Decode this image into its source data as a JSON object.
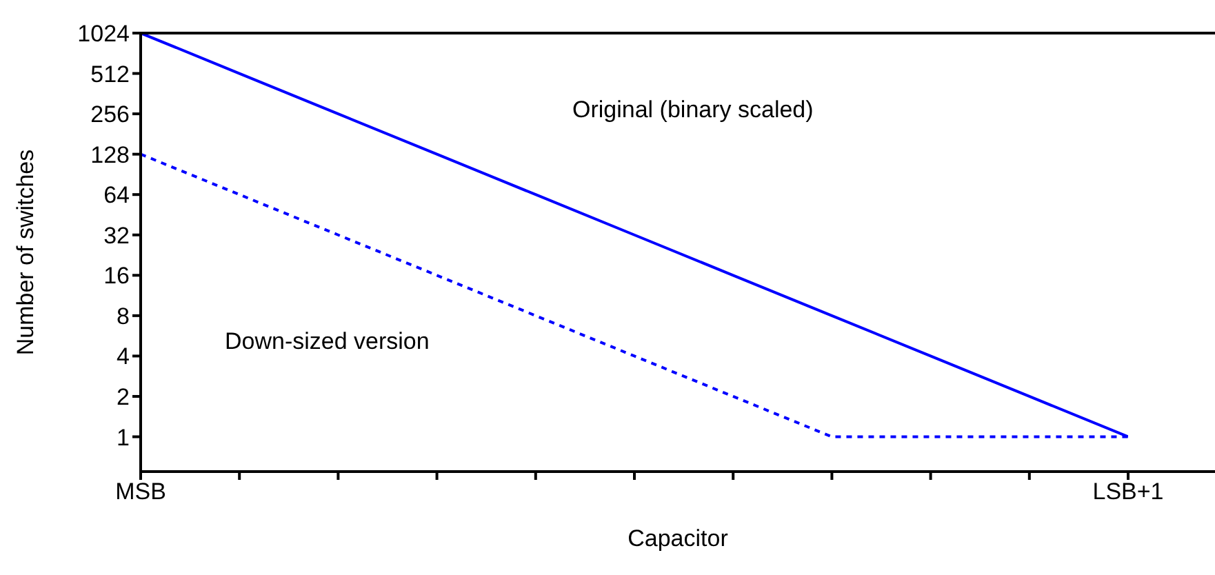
{
  "chart_data": {
    "type": "line",
    "xlabel": "Capacitor",
    "ylabel": "Number of switches",
    "log": "y",
    "marker": "none",
    "categories": [
      "MSB",
      null,
      null,
      null,
      null,
      null,
      null,
      null,
      null,
      null,
      "LSB+1"
    ],
    "ylim": [
      0.55,
      1024
    ],
    "yticks": [
      1,
      2,
      4,
      8,
      16,
      32,
      64,
      128,
      256,
      512,
      1024
    ],
    "series": [
      {
        "color": "#0000ff",
        "line_style": "solid",
        "values": [
          1024,
          512,
          256,
          128,
          64,
          32,
          16,
          8,
          4,
          2,
          1
        ]
      },
      {
        "color": "#0000ff",
        "line_style": "dashed",
        "values": [
          128,
          64,
          32,
          16,
          8,
          4,
          2,
          1,
          1,
          1,
          1
        ]
      }
    ],
    "annotations": [
      "Original (binary scaled)",
      "Down-sized version"
    ]
  }
}
